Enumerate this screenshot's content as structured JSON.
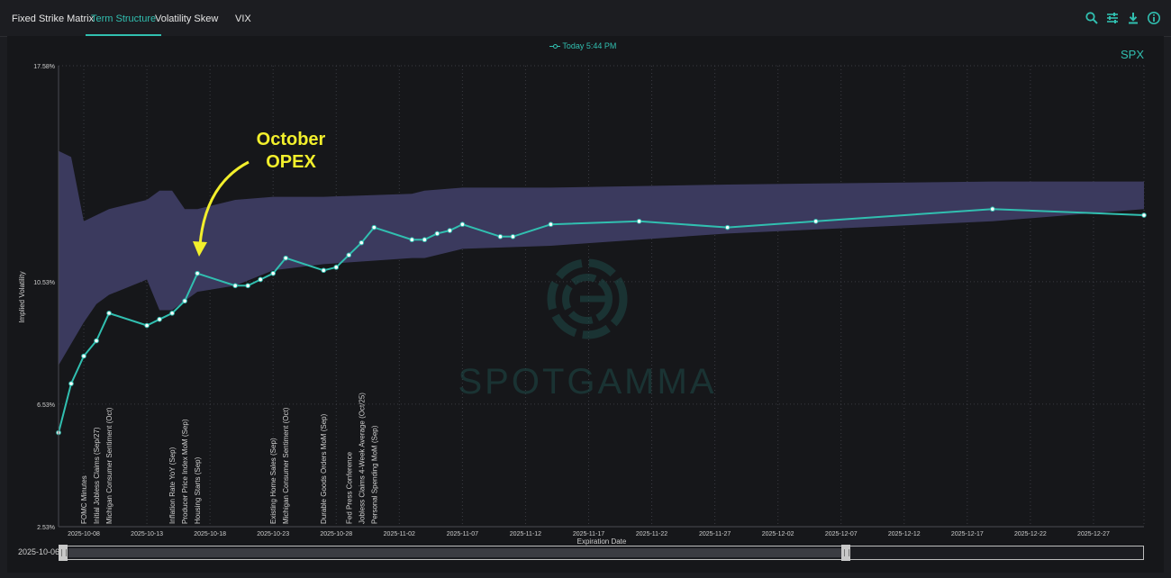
{
  "tabs": [
    {
      "label": "Fixed Strike Matrix",
      "active": false
    },
    {
      "label": "Term Structure",
      "active": true
    },
    {
      "label": "Volatility Skew",
      "active": false
    },
    {
      "label": "VIX",
      "active": false
    }
  ],
  "toolbar_icons": [
    "search-icon",
    "sliders-icon",
    "download-icon",
    "info-icon"
  ],
  "colors": {
    "accent": "#31bfb0",
    "band": "#3b3a5e",
    "annotation": "#f2ef2c",
    "background": "#16171a"
  },
  "legend_label": "Today 5:44 PM",
  "ticker": "SPX",
  "annotation": {
    "line1": "October",
    "line2": "OPEX"
  },
  "range": {
    "start": "2025-10-06",
    "end": "2025-12-31"
  },
  "watermark": "SPOTGAMMA",
  "chart_data": {
    "type": "line",
    "xlabel": "Expiration Date",
    "ylabel": "Implied Volatility",
    "ylim": [
      2.53,
      17.58
    ],
    "y_ticks": [
      "2.53%",
      "6.53%",
      "10.53%",
      "17.58%"
    ],
    "y_tick_values": [
      2.53,
      6.53,
      10.53,
      17.58
    ],
    "x_ticks": [
      "2025-10-08",
      "2025-10-13",
      "2025-10-18",
      "2025-10-23",
      "2025-10-28",
      "2025-11-02",
      "2025-11-07",
      "2025-11-12",
      "2025-11-17",
      "2025-11-22",
      "2025-11-27",
      "2025-12-02",
      "2025-12-07",
      "2025-12-12",
      "2025-12-17",
      "2025-12-22",
      "2025-12-27"
    ],
    "x_range": [
      "2025-10-06",
      "2025-12-31"
    ],
    "grid": true,
    "series": [
      {
        "name": "Today 5:44 PM",
        "x": [
          "2025-10-06",
          "2025-10-07",
          "2025-10-08",
          "2025-10-09",
          "2025-10-10",
          "2025-10-13",
          "2025-10-14",
          "2025-10-15",
          "2025-10-16",
          "2025-10-17",
          "2025-10-20",
          "2025-10-21",
          "2025-10-22",
          "2025-10-23",
          "2025-10-24",
          "2025-10-27",
          "2025-10-28",
          "2025-10-29",
          "2025-10-30",
          "2025-10-31",
          "2025-11-03",
          "2025-11-04",
          "2025-11-05",
          "2025-11-06",
          "2025-11-07",
          "2025-11-10",
          "2025-11-11",
          "2025-11-14",
          "2025-11-21",
          "2025-11-28",
          "2025-12-05",
          "2025-12-19",
          "2025-12-31"
        ],
        "values": [
          5.6,
          7.2,
          8.1,
          8.6,
          9.5,
          9.1,
          9.3,
          9.5,
          9.9,
          10.8,
          10.4,
          10.4,
          10.6,
          10.8,
          11.3,
          10.9,
          11.0,
          11.4,
          11.8,
          12.3,
          11.9,
          11.9,
          12.1,
          12.2,
          12.4,
          12.0,
          12.0,
          12.4,
          12.5,
          12.3,
          12.5,
          12.9,
          12.7
        ]
      }
    ],
    "band": {
      "x": [
        "2025-10-06",
        "2025-10-07",
        "2025-10-08",
        "2025-10-09",
        "2025-10-10",
        "2025-10-13",
        "2025-10-14",
        "2025-10-15",
        "2025-10-16",
        "2025-10-17",
        "2025-10-20",
        "2025-10-23",
        "2025-10-27",
        "2025-11-03",
        "2025-11-04",
        "2025-11-07",
        "2025-11-14",
        "2025-11-28",
        "2025-12-19",
        "2025-12-31"
      ],
      "upper": [
        14.8,
        14.6,
        12.5,
        12.7,
        12.9,
        13.2,
        13.5,
        13.5,
        12.9,
        12.9,
        13.2,
        13.3,
        13.3,
        13.4,
        13.5,
        13.6,
        13.6,
        13.7,
        13.8,
        13.8
      ],
      "lower": [
        7.8,
        8.5,
        9.2,
        9.8,
        10.1,
        10.6,
        9.6,
        9.6,
        9.9,
        10.2,
        10.4,
        10.9,
        11.1,
        11.3,
        11.3,
        11.6,
        11.7,
        12.1,
        12.5,
        12.9
      ]
    },
    "events": [
      {
        "date": "2025-10-08",
        "label": "FOMC Minutes"
      },
      {
        "date": "2025-10-09",
        "label": "Initial Jobless Claims (Sep/27)"
      },
      {
        "date": "2025-10-10",
        "label": "Michigan Consumer Sentiment (Oct)"
      },
      {
        "date": "2025-10-15",
        "label": "Inflation Rate YoY (Sep)"
      },
      {
        "date": "2025-10-16",
        "label": "Producer Price Index MoM (Sep)"
      },
      {
        "date": "2025-10-17",
        "label": "Housing Starts (Sep)"
      },
      {
        "date": "2025-10-23",
        "label": "Existing Home Sales (Sep)"
      },
      {
        "date": "2025-10-24",
        "label": "Michigan Consumer Sentiment (Oct)"
      },
      {
        "date": "2025-10-27",
        "label": "Durable Goods Orders MoM (Sep)"
      },
      {
        "date": "2025-10-29",
        "label": "Fed Press Conference"
      },
      {
        "date": "2025-10-30",
        "label": "Jobless Claims 4-Week Average (Oct/25)"
      },
      {
        "date": "2025-10-31",
        "label": "Personal Spending MoM (Sep)"
      }
    ]
  }
}
